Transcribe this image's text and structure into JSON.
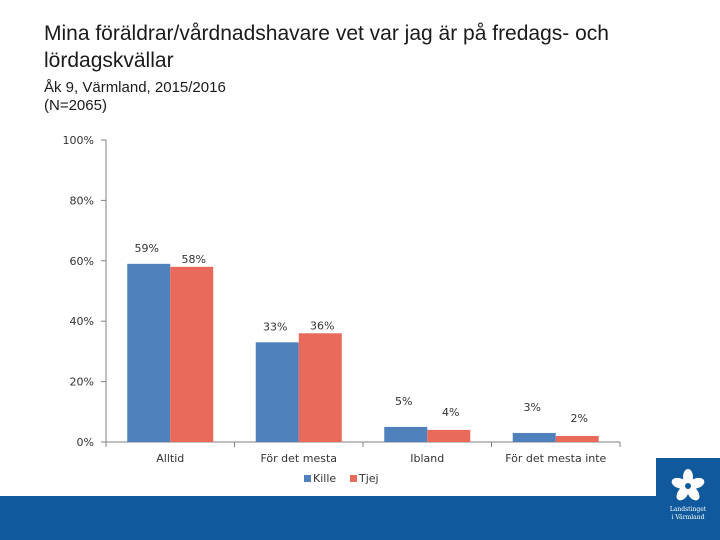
{
  "header": {
    "title": "Mina föräldrar/vårdnadshavare vet var jag är på fredags- och lördagskvällar",
    "subtitle_line1": "Åk 9, Värmland, 2015/2016",
    "subtitle_line2": "(N=2065)"
  },
  "logo": {
    "line1": "Landstinget",
    "line2": "i Värmland",
    "icon": "flower-emblem-icon"
  },
  "colors": {
    "kille": "#4f81bd",
    "tjej": "#e9695a",
    "axis": "#808080",
    "band": "#10599c"
  },
  "chart_data": {
    "type": "bar",
    "title": "Mina föräldrar/vårdnadshavare vet var jag är på fredags- och lördagskvällar",
    "categories": [
      "Alltid",
      "För det mesta",
      "Ibland",
      "För det mesta inte"
    ],
    "series": [
      {
        "name": "Kille",
        "values": [
          59,
          33,
          5,
          3
        ],
        "labels": [
          "59%",
          "33%",
          "5%",
          "3%"
        ]
      },
      {
        "name": "Tjej",
        "values": [
          58,
          36,
          4,
          2
        ],
        "labels": [
          "58%",
          "36%",
          "4%",
          "2%"
        ]
      }
    ],
    "ylim": [
      0,
      100
    ],
    "yticks": [
      0,
      20,
      40,
      60,
      80,
      100
    ],
    "ytick_labels": [
      "0%",
      "20%",
      "40%",
      "60%",
      "80%",
      "100%"
    ],
    "xlabel": "",
    "ylabel": "",
    "grid": false,
    "legend": "bottom"
  }
}
